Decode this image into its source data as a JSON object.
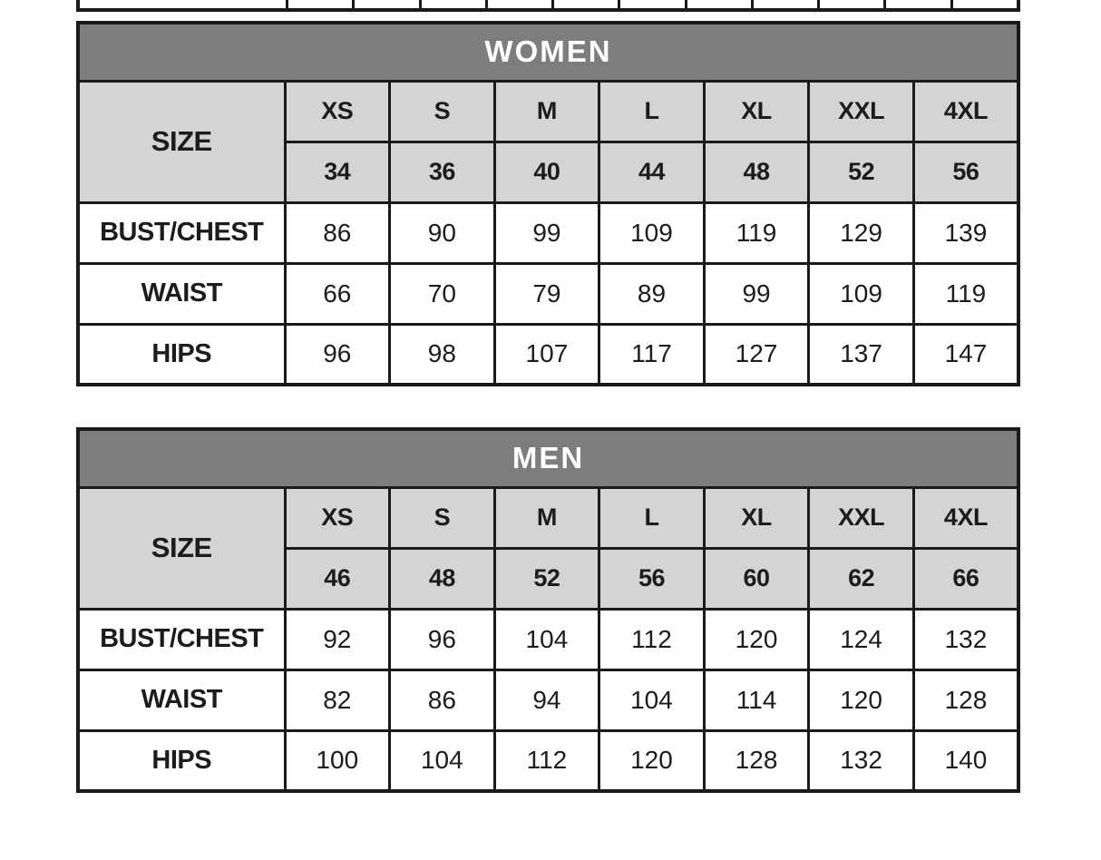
{
  "colors": {
    "border": "#1a1a1a",
    "band_background": "#7d7d7d",
    "band_text": "#ffffff",
    "subheader_background": "#d5d4d2",
    "cell_background": "#ffffff",
    "text": "#1c1c1c"
  },
  "partial_table_top": {
    "visible": "bottom-edge-only",
    "column_count": 12
  },
  "charts": [
    {
      "title": "WOMEN",
      "size_label": "SIZE",
      "size_names": [
        "XS",
        "S",
        "M",
        "L",
        "XL",
        "XXL",
        "4XL"
      ],
      "size_numbers": [
        "34",
        "36",
        "40",
        "44",
        "48",
        "52",
        "56"
      ],
      "rows": [
        {
          "label": "BUST/CHEST",
          "values": [
            "86",
            "90",
            "99",
            "109",
            "119",
            "129",
            "139"
          ]
        },
        {
          "label": "WAIST",
          "values": [
            "66",
            "70",
            "79",
            "89",
            "99",
            "109",
            "119"
          ]
        },
        {
          "label": "HIPS",
          "values": [
            "96",
            "98",
            "107",
            "117",
            "127",
            "137",
            "147"
          ]
        }
      ]
    },
    {
      "title": "MEN",
      "size_label": "SIZE",
      "size_names": [
        "XS",
        "S",
        "M",
        "L",
        "XL",
        "XXL",
        "4XL"
      ],
      "size_numbers": [
        "46",
        "48",
        "52",
        "56",
        "60",
        "62",
        "66"
      ],
      "rows": [
        {
          "label": "BUST/CHEST",
          "values": [
            "92",
            "96",
            "104",
            "112",
            "120",
            "124",
            "132"
          ]
        },
        {
          "label": "WAIST",
          "values": [
            "82",
            "86",
            "94",
            "104",
            "114",
            "120",
            "128"
          ]
        },
        {
          "label": "HIPS",
          "values": [
            "100",
            "104",
            "112",
            "120",
            "128",
            "132",
            "140"
          ]
        }
      ]
    }
  ]
}
